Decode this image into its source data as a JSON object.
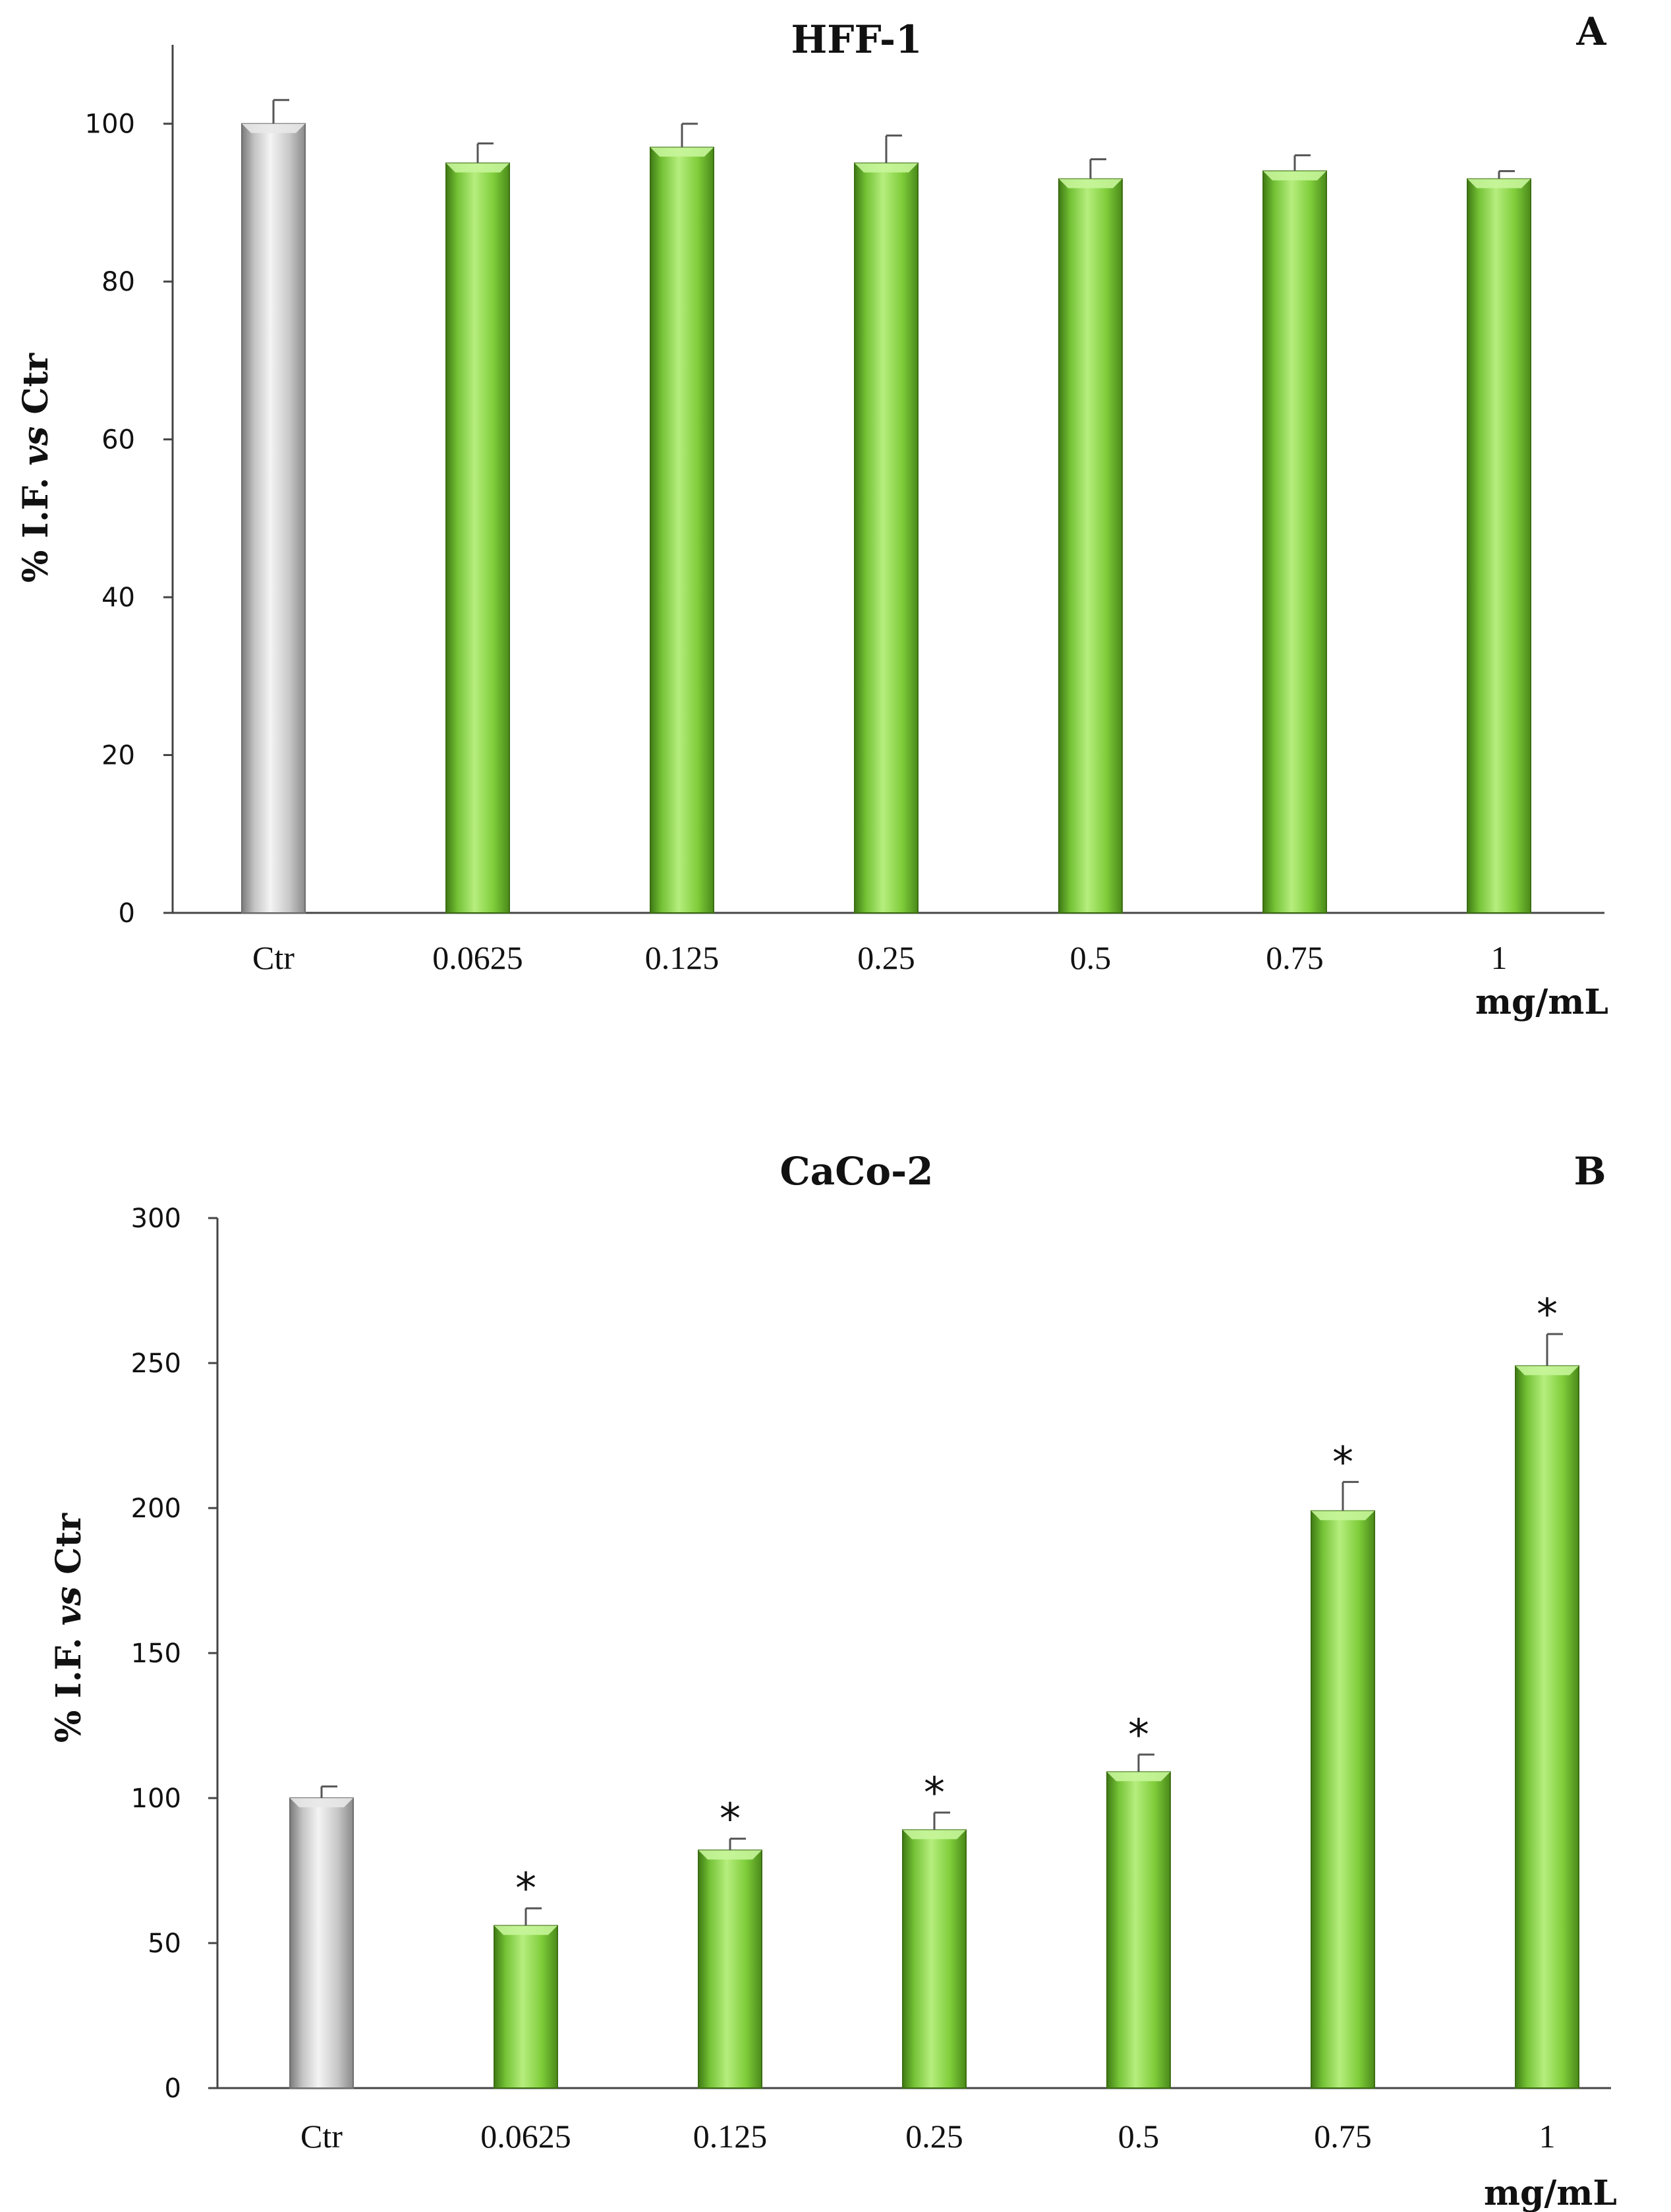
{
  "colors": {
    "control_bar": "#c9c9c9",
    "treatment_bar": "#8fd84a",
    "axis": "#444444"
  },
  "chart_data": [
    {
      "type": "bar",
      "panel": "A",
      "title": "HFF-1",
      "ylabel_prefix": "% I.F.",
      "ylabel_vs": "vs",
      "ylabel_suffix": "Ctr",
      "xunit": "mg/mL",
      "categories": [
        "Ctr",
        "0.0625",
        "0.125",
        "0.25",
        "0.5",
        "0.75",
        "1"
      ],
      "values": [
        100,
        95,
        97,
        95,
        93,
        94,
        93
      ],
      "errors": [
        3,
        2.5,
        3,
        3.5,
        2.5,
        2,
        1
      ],
      "significant": [
        false,
        false,
        false,
        false,
        false,
        false,
        false
      ],
      "significance_marker": "*",
      "ylim": [
        0,
        110
      ],
      "yticks": [
        0,
        20,
        40,
        60,
        80,
        100
      ]
    },
    {
      "type": "bar",
      "panel": "B",
      "title": "CaCo-2",
      "ylabel_prefix": "% I.F.",
      "ylabel_vs": "vs",
      "ylabel_suffix": "Ctr",
      "xunit": "mg/mL",
      "categories": [
        "Ctr",
        "0.0625",
        "0.125",
        "0.25",
        "0.5",
        "0.75",
        "1"
      ],
      "values": [
        100,
        56,
        82,
        89,
        109,
        199,
        249
      ],
      "errors": [
        4,
        6,
        4,
        6,
        6,
        10,
        11
      ],
      "significant": [
        false,
        true,
        true,
        true,
        true,
        true,
        true
      ],
      "significance_marker": "*",
      "ylim": [
        0,
        300
      ],
      "yticks": [
        0,
        50,
        100,
        150,
        200,
        250,
        300
      ]
    }
  ]
}
